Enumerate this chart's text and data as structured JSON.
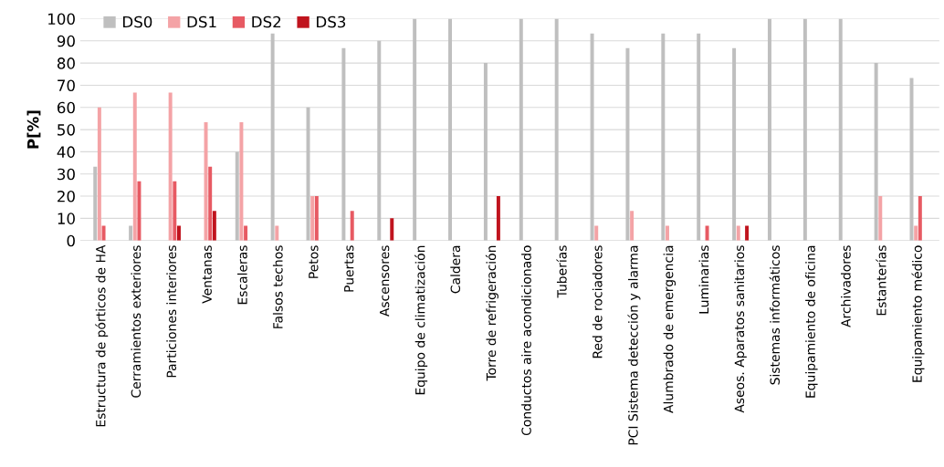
{
  "chart_data": {
    "type": "bar",
    "ylabel": "P[%]",
    "categories": [
      "Estructura de pórticos de HA",
      "Cerramientos exteriores",
      "Particiones interiores",
      "Ventanas",
      "Escaleras",
      "Falsos techos",
      "Petos",
      "Puertas",
      "Ascensores",
      "Equipo de climatización",
      "Caldera",
      "Torre de refrigeración",
      "Conductos aire acondicionado",
      "Tuberías",
      "Red de rociadores",
      "PCI Sistema detección y alarma",
      "Alumbrado de emergencia",
      "Luminarias",
      "Aseos. Aparatos sanitarios",
      "Sistemas informáticos",
      "Equipamiento de oficina",
      "Archivadores",
      "Estanterías",
      "Equipamiento médico"
    ],
    "series": [
      {
        "name": "DS0",
        "color": "#bfbfbf",
        "values": [
          33.3,
          6.7,
          0,
          0,
          40,
          93.3,
          60,
          86.7,
          90,
          100,
          100,
          80,
          100,
          100,
          93.3,
          86.7,
          93.3,
          93.3,
          86.7,
          100,
          100,
          100,
          80,
          73.3
        ]
      },
      {
        "name": "DS1",
        "color": "#f4a3a6",
        "values": [
          60,
          66.7,
          66.7,
          53.3,
          53.3,
          6.7,
          20,
          0,
          0,
          0,
          0,
          0,
          0,
          0,
          6.7,
          13.3,
          6.7,
          0,
          6.7,
          0,
          0,
          0,
          20,
          6.7
        ]
      },
      {
        "name": "DS2",
        "color": "#e75a63",
        "values": [
          6.7,
          26.7,
          26.7,
          33.3,
          6.7,
          0,
          20,
          13.3,
          0,
          0,
          0,
          0,
          0,
          0,
          0,
          0,
          0,
          6.7,
          0,
          0,
          0,
          0,
          0,
          20
        ]
      },
      {
        "name": "DS3",
        "color": "#c0141e",
        "values": [
          0,
          0,
          6.7,
          13.3,
          0,
          0,
          0,
          0,
          10,
          0,
          0,
          20,
          0,
          0,
          0,
          0,
          0,
          0,
          6.7,
          0,
          0,
          0,
          0,
          0
        ]
      }
    ],
    "ylim": [
      0,
      100
    ],
    "yticks": [
      0,
      10,
      20,
      30,
      40,
      50,
      60,
      70,
      80,
      90,
      100
    ],
    "grid": "y",
    "legend": "top left"
  }
}
